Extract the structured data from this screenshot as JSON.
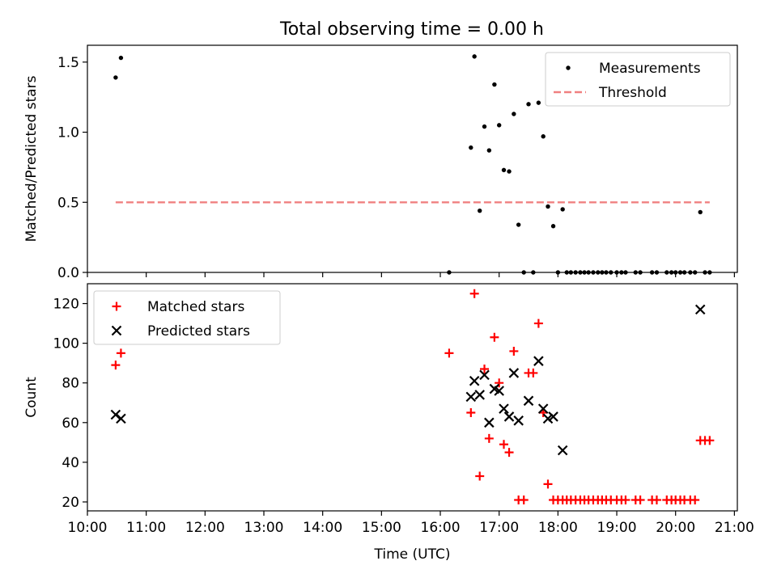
{
  "chart_data": [
    {
      "type": "scatter",
      "title": "Total observing time = 0.00 h",
      "xlabel": "",
      "ylabel": "Matched/Predicted stars",
      "xlim": [
        10.0,
        21.05
      ],
      "ylim": [
        0,
        1.62
      ],
      "yticks": [
        0,
        0.5,
        1.0,
        1.5
      ],
      "ytick_labels": [
        "0.0",
        "0.5",
        "1.0",
        "1.5"
      ],
      "legend_position": "top-right",
      "series": [
        {
          "name": "Measurements",
          "kind": "points",
          "color": "#000000",
          "x": [
            10.48,
            10.57,
            16.15,
            16.52,
            16.58,
            16.67,
            16.75,
            16.83,
            16.92,
            17.0,
            17.08,
            17.17,
            17.25,
            17.33,
            17.42,
            17.5,
            17.58,
            17.67,
            17.75,
            17.83,
            17.92,
            18.0,
            18.08,
            18.15,
            18.22,
            18.3,
            18.38,
            18.45,
            18.52,
            18.6,
            18.68,
            18.75,
            18.82,
            18.9,
            19.0,
            19.08,
            19.15,
            19.32,
            19.4,
            19.6,
            19.68,
            19.85,
            19.93,
            20.0,
            20.08,
            20.15,
            20.25,
            20.33,
            20.42,
            20.5,
            20.58
          ],
          "y": [
            1.39,
            1.53,
            0,
            0.89,
            1.54,
            0.44,
            1.04,
            0.87,
            1.34,
            1.05,
            0.73,
            0.72,
            1.13,
            0.34,
            0,
            1.2,
            0,
            1.21,
            0.97,
            0.47,
            0.33,
            0,
            0.45,
            0,
            0,
            0,
            0,
            0,
            0,
            0,
            0,
            0,
            0,
            0,
            0,
            0,
            0,
            0,
            0,
            0,
            0,
            0,
            0,
            0,
            0,
            0,
            0,
            0,
            0.43,
            0,
            0
          ]
        },
        {
          "name": "Threshold",
          "kind": "dashed-line",
          "color": "#f08080",
          "x": [
            10.48,
            20.58
          ],
          "y": [
            0.5,
            0.5
          ]
        }
      ]
    },
    {
      "type": "scatter",
      "title": "",
      "xlabel": "Time (UTC)",
      "ylabel": "Count",
      "xlim": [
        10.0,
        21.05
      ],
      "ylim": [
        15.5,
        130
      ],
      "yticks": [
        20,
        40,
        60,
        80,
        100,
        120
      ],
      "ytick_labels": [
        "20",
        "40",
        "60",
        "80",
        "100",
        "120"
      ],
      "xticks": [
        10,
        11,
        12,
        13,
        14,
        15,
        16,
        17,
        18,
        19,
        20,
        21
      ],
      "xtick_labels": [
        "10:00",
        "11:00",
        "12:00",
        "13:00",
        "14:00",
        "15:00",
        "16:00",
        "17:00",
        "18:00",
        "19:00",
        "20:00",
        "21:00"
      ],
      "legend_position": "top-left",
      "series": [
        {
          "name": "Matched stars",
          "marker": "plus",
          "color": "#ff0000",
          "x": [
            10.48,
            10.57,
            16.15,
            16.52,
            16.58,
            16.67,
            16.75,
            16.83,
            16.92,
            17.0,
            17.08,
            17.17,
            17.25,
            17.33,
            17.42,
            17.5,
            17.58,
            17.67,
            17.75,
            17.83,
            17.92,
            18.0,
            18.08,
            18.15,
            18.22,
            18.3,
            18.38,
            18.45,
            18.52,
            18.6,
            18.68,
            18.75,
            18.82,
            18.9,
            19.0,
            19.08,
            19.15,
            19.32,
            19.4,
            19.6,
            19.68,
            19.85,
            19.93,
            20.0,
            20.08,
            20.15,
            20.25,
            20.33,
            20.42,
            20.5,
            20.58
          ],
          "y": [
            89,
            95,
            95,
            65,
            125,
            33,
            87,
            52,
            103,
            80,
            49,
            45,
            96,
            21,
            21,
            85,
            85,
            110,
            65,
            29,
            21,
            21,
            21,
            21,
            21,
            21,
            21,
            21,
            21,
            21,
            21,
            21,
            21,
            21,
            21,
            21,
            21,
            21,
            21,
            21,
            21,
            21,
            21,
            21,
            21,
            21,
            21,
            21,
            51,
            51,
            51
          ]
        },
        {
          "name": "Predicted stars",
          "marker": "x",
          "color": "#000000",
          "x": [
            10.48,
            10.57,
            16.52,
            16.58,
            16.67,
            16.75,
            16.83,
            16.92,
            17.0,
            17.08,
            17.17,
            17.25,
            17.33,
            17.5,
            17.67,
            17.75,
            17.83,
            17.92,
            18.08,
            20.42
          ],
          "y": [
            64,
            62,
            73,
            81,
            74,
            84,
            60,
            77,
            76,
            67,
            63,
            85,
            61,
            71,
            91,
            67,
            62,
            63,
            46,
            117
          ]
        }
      ]
    }
  ]
}
